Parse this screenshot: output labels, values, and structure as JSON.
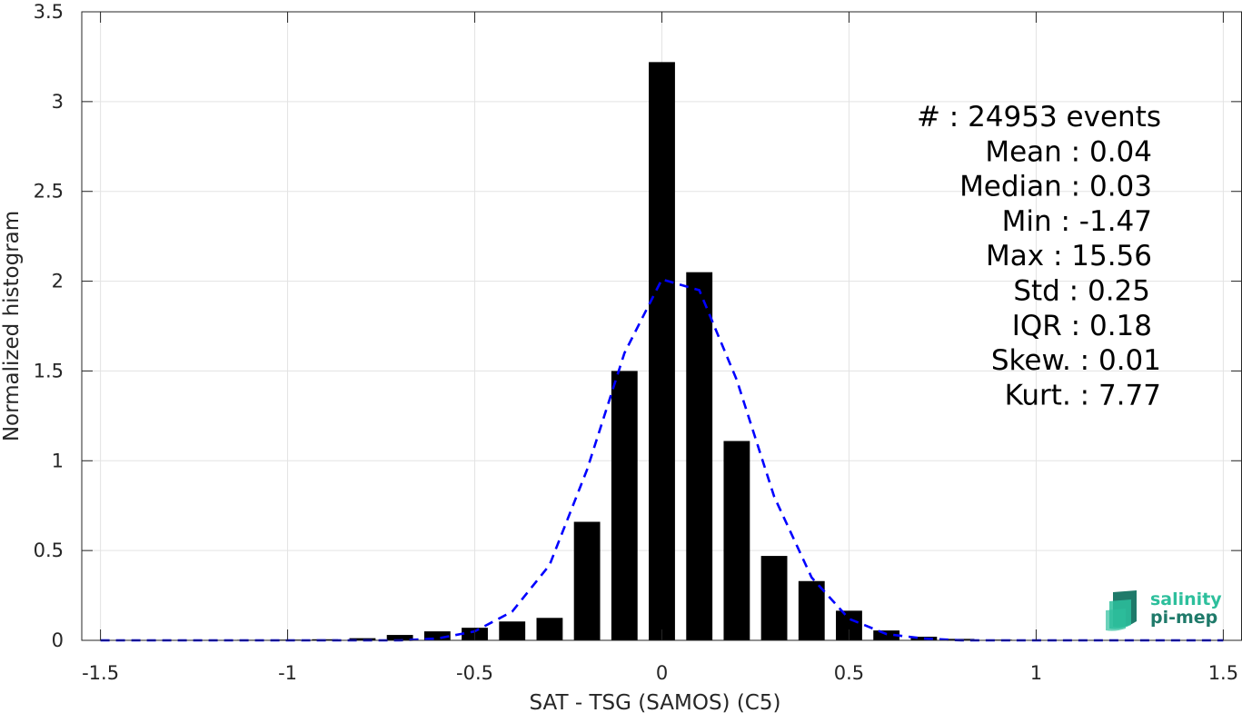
{
  "chart_data": {
    "type": "bar",
    "xlabel": "SAT - TSG (SAMOS) (C5)",
    "ylabel": "Normalized histogram",
    "xlim": [
      -1.55,
      1.55
    ],
    "ylim": [
      0,
      3.5
    ],
    "grid": true,
    "x_ticks": [
      {
        "value": -1.5,
        "label": "-1.5"
      },
      {
        "value": -1.0,
        "label": "-1"
      },
      {
        "value": -0.5,
        "label": "-0.5"
      },
      {
        "value": 0.0,
        "label": "0"
      },
      {
        "value": 0.5,
        "label": "0.5"
      },
      {
        "value": 1.0,
        "label": "1"
      },
      {
        "value": 1.5,
        "label": "1.5"
      }
    ],
    "y_ticks": [
      {
        "value": 0,
        "label": "0"
      },
      {
        "value": 0.5,
        "label": "0.5"
      },
      {
        "value": 1.0,
        "label": "1"
      },
      {
        "value": 1.5,
        "label": "1.5"
      },
      {
        "value": 2.0,
        "label": "2"
      },
      {
        "value": 2.5,
        "label": "2.5"
      },
      {
        "value": 3.0,
        "label": "3"
      },
      {
        "value": 3.5,
        "label": "3.5"
      }
    ],
    "bar_width": 0.07,
    "bars": {
      "color": "#000000",
      "x": [
        -1.5,
        -1.4,
        -1.3,
        -1.2,
        -1.1,
        -1.0,
        -0.9,
        -0.8,
        -0.7,
        -0.6,
        -0.5,
        -0.4,
        -0.3,
        -0.2,
        -0.1,
        0.0,
        0.1,
        0.2,
        0.3,
        0.4,
        0.5,
        0.6,
        0.7,
        0.8,
        0.9,
        1.0,
        1.1,
        1.2,
        1.3,
        1.4,
        1.5
      ],
      "y": [
        0.001,
        0.001,
        0.002,
        0.002,
        0.003,
        0.004,
        0.006,
        0.012,
        0.03,
        0.05,
        0.07,
        0.105,
        0.125,
        0.66,
        1.5,
        3.22,
        2.05,
        1.11,
        0.47,
        0.33,
        0.165,
        0.055,
        0.02,
        0.008,
        0.004,
        0.002,
        0.001,
        0.001,
        0.001,
        0.001,
        0.001
      ]
    },
    "fit_curve": {
      "color": "#0000ff",
      "style": "dashed",
      "x": [
        -1.5,
        -1.4,
        -1.3,
        -1.2,
        -1.1,
        -1.0,
        -0.9,
        -0.8,
        -0.7,
        -0.6,
        -0.5,
        -0.4,
        -0.3,
        -0.2,
        -0.1,
        0.0,
        0.1,
        0.2,
        0.3,
        0.4,
        0.5,
        0.6,
        0.7,
        0.8,
        0.9,
        1.0,
        1.1,
        1.2,
        1.3,
        1.4,
        1.5
      ],
      "y": [
        0,
        0,
        0,
        0,
        0,
        0,
        0,
        0,
        0,
        0.01,
        0.05,
        0.16,
        0.42,
        0.95,
        1.6,
        2.01,
        1.95,
        1.45,
        0.8,
        0.35,
        0.12,
        0.035,
        0.01,
        0,
        0,
        0,
        0,
        0,
        0,
        0,
        0
      ]
    },
    "stats": [
      "#  : 24953 events",
      "Mean : 0.04",
      "Median : 0.03",
      "Min : -1.47",
      "Max : 15.56",
      "Std : 0.25",
      "IQR : 0.18",
      "Skew. : 0.01",
      "Kurt. : 7.77"
    ]
  },
  "logo": {
    "line1": "salinity",
    "line2": "pi-mep",
    "color_light": "#2dbf9c",
    "color_dark": "#1f7a6a"
  }
}
